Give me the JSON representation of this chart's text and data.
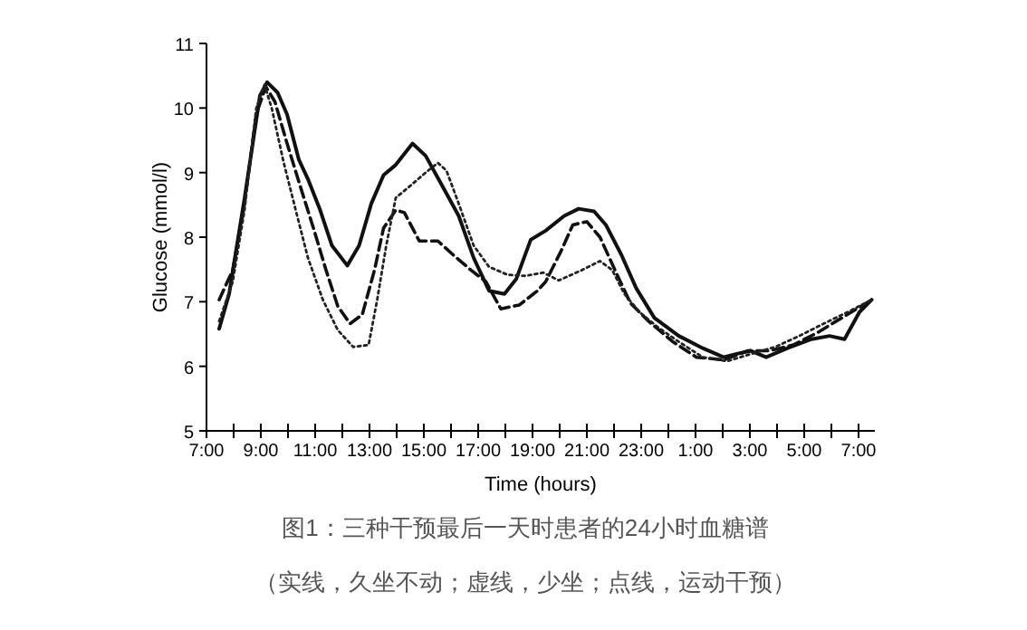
{
  "chart_data": {
    "type": "line",
    "xlabel": "Time (hours)",
    "ylabel": "Glucose (mmol/l)",
    "annotations": [
      "图1：三种干预最后一天时患者的24小时血糖谱",
      "（实线，久坐不动；虚线，少坐；点线，运动干预）"
    ],
    "xlim": [
      "2000-01-01T07:00",
      "2000-01-02T07:36"
    ],
    "ylim": [
      5,
      11
    ],
    "xticks": [
      {
        "value": "2000-01-01T07:00",
        "label": "7:00"
      },
      {
        "value": "2000-01-01T08:00",
        "label": null
      },
      {
        "value": "2000-01-01T09:00",
        "label": "9:00"
      },
      {
        "value": "2000-01-01T10:00",
        "label": null
      },
      {
        "value": "2000-01-01T11:00",
        "label": "11:00"
      },
      {
        "value": "2000-01-01T12:00",
        "label": null
      },
      {
        "value": "2000-01-01T13:00",
        "label": "13:00"
      },
      {
        "value": "2000-01-01T14:00",
        "label": null
      },
      {
        "value": "2000-01-01T15:00",
        "label": "15:00"
      },
      {
        "value": "2000-01-01T16:00",
        "label": null
      },
      {
        "value": "2000-01-01T17:00",
        "label": "17:00"
      },
      {
        "value": "2000-01-01T18:00",
        "label": null
      },
      {
        "value": "2000-01-01T19:00",
        "label": "19:00"
      },
      {
        "value": "2000-01-01T20:00",
        "label": null
      },
      {
        "value": "2000-01-01T21:00",
        "label": "21:00"
      },
      {
        "value": "2000-01-01T22:00",
        "label": null
      },
      {
        "value": "2000-01-01T23:00",
        "label": "23:00"
      },
      {
        "value": "2000-01-02T00:00",
        "label": null
      },
      {
        "value": "2000-01-02T01:00",
        "label": "1:00"
      },
      {
        "value": "2000-01-02T02:00",
        "label": null
      },
      {
        "value": "2000-01-02T03:00",
        "label": "3:00"
      },
      {
        "value": "2000-01-02T04:00",
        "label": null
      },
      {
        "value": "2000-01-02T05:00",
        "label": "5:00"
      },
      {
        "value": "2000-01-02T06:00",
        "label": null
      },
      {
        "value": "2000-01-02T07:00",
        "label": "7:00"
      }
    ],
    "yticks": [
      5,
      6,
      7,
      8,
      9,
      10,
      11
    ],
    "series": [
      {
        "color": "#111111",
        "line_style": "solid",
        "x": [
          "2000-01-01T07:28",
          "2000-01-01T07:50",
          "2000-01-01T08:24",
          "2000-01-01T08:58",
          "2000-01-01T09:14",
          "2000-01-01T09:37",
          "2000-01-01T09:58",
          "2000-01-01T10:24",
          "2000-01-01T10:44",
          "2000-01-01T11:11",
          "2000-01-01T11:37",
          "2000-01-01T12:11",
          "2000-01-01T12:37",
          "2000-01-01T13:04",
          "2000-01-01T13:31",
          "2000-01-01T13:58",
          "2000-01-01T14:35",
          "2000-01-01T15:04",
          "2000-01-01T15:37",
          "2000-01-01T16:17",
          "2000-01-01T16:50",
          "2000-01-01T17:24",
          "2000-01-01T17:58",
          "2000-01-01T18:24",
          "2000-01-01T18:56",
          "2000-01-01T19:29",
          "2000-01-01T20:10",
          "2000-01-01T20:42",
          "2000-01-01T21:16",
          "2000-01-01T21:42",
          "2000-01-01T22:16",
          "2000-01-01T22:49",
          "2000-01-01T23:29",
          "2000-01-02T00:23",
          "2000-01-02T01:16",
          "2000-01-02T02:02",
          "2000-01-02T02:29",
          "2000-01-02T03:02",
          "2000-01-02T03:36",
          "2000-01-02T04:23",
          "2000-01-02T05:16",
          "2000-01-02T05:56",
          "2000-01-02T06:29",
          "2000-01-02T07:02",
          "2000-01-02T07:29"
        ],
        "values": [
          6.58,
          7.12,
          8.6,
          10.19,
          10.4,
          10.24,
          9.9,
          9.2,
          8.9,
          8.42,
          7.87,
          7.56,
          7.87,
          8.52,
          8.96,
          9.12,
          9.45,
          9.26,
          8.84,
          8.33,
          7.68,
          7.17,
          7.12,
          7.35,
          7.96,
          8.1,
          8.33,
          8.44,
          8.4,
          8.19,
          7.73,
          7.21,
          6.75,
          6.47,
          6.28,
          6.14,
          6.19,
          6.24,
          6.14,
          6.28,
          6.42,
          6.47,
          6.42,
          6.84,
          7.03
        ]
      },
      {
        "color": "#111111",
        "line_style": "dashed",
        "x": [
          "2000-01-01T07:28",
          "2000-01-01T07:58",
          "2000-01-01T08:24",
          "2000-01-01T08:50",
          "2000-01-01T09:11",
          "2000-01-01T09:31",
          "2000-01-01T09:58",
          "2000-01-01T10:31",
          "2000-01-01T10:58",
          "2000-01-01T11:24",
          "2000-01-01T11:50",
          "2000-01-01T12:17",
          "2000-01-01T12:44",
          "2000-01-01T13:11",
          "2000-01-01T13:31",
          "2000-01-01T13:58",
          "2000-01-01T14:17",
          "2000-01-01T14:50",
          "2000-01-01T15:31",
          "2000-01-01T16:04",
          "2000-01-01T16:44",
          "2000-01-01T17:17",
          "2000-01-01T17:50",
          "2000-01-01T18:31",
          "2000-01-01T19:11",
          "2000-01-01T19:29",
          "2000-01-01T20:02",
          "2000-01-01T20:29",
          "2000-01-01T21:00",
          "2000-01-01T21:29",
          "2000-01-01T22:02",
          "2000-01-01T22:36",
          "2000-01-01T23:16",
          "2000-01-02T00:10",
          "2000-01-02T01:02",
          "2000-01-02T02:02",
          "2000-01-02T02:56",
          "2000-01-02T03:43",
          "2000-01-02T04:36",
          "2000-01-02T05:29",
          "2000-01-02T06:23",
          "2000-01-02T07:29"
        ],
        "values": [
          7.03,
          7.49,
          8.52,
          9.91,
          10.33,
          10.1,
          9.45,
          8.7,
          8.1,
          7.49,
          6.93,
          6.66,
          6.8,
          7.49,
          8.14,
          8.42,
          8.38,
          7.94,
          7.94,
          7.73,
          7.49,
          7.31,
          6.89,
          6.95,
          7.17,
          7.31,
          7.77,
          8.19,
          8.24,
          8.0,
          7.49,
          6.98,
          6.7,
          6.38,
          6.14,
          6.1,
          6.24,
          6.24,
          6.33,
          6.52,
          6.75,
          7.03
        ]
      },
      {
        "color": "#222222",
        "line_style": "dotted",
        "x": [
          "2000-01-01T07:28",
          "2000-01-01T07:58",
          "2000-01-01T08:24",
          "2000-01-01T08:50",
          "2000-01-01T09:08",
          "2000-01-01T09:24",
          "2000-01-01T09:50",
          "2000-01-01T10:17",
          "2000-01-01T10:44",
          "2000-01-01T11:17",
          "2000-01-01T11:50",
          "2000-01-01T12:24",
          "2000-01-01T12:58",
          "2000-01-01T13:17",
          "2000-01-01T13:37",
          "2000-01-01T13:58",
          "2000-01-01T14:31",
          "2000-01-01T15:04",
          "2000-01-01T15:31",
          "2000-01-01T15:50",
          "2000-01-01T16:17",
          "2000-01-01T16:50",
          "2000-01-01T17:24",
          "2000-01-01T18:04",
          "2000-01-01T18:44",
          "2000-01-01T19:24",
          "2000-01-01T19:58",
          "2000-01-01T20:49",
          "2000-01-01T21:29",
          "2000-01-01T21:56",
          "2000-01-01T22:23",
          "2000-01-01T22:56",
          "2000-01-01T23:36",
          "2000-01-02T00:23",
          "2000-01-02T01:16",
          "2000-01-02T02:10",
          "2000-01-02T03:02",
          "2000-01-02T03:56",
          "2000-01-02T04:49",
          "2000-01-02T05:43",
          "2000-01-02T06:36",
          "2000-01-02T07:29"
        ],
        "values": [
          6.7,
          7.31,
          8.42,
          10.0,
          10.36,
          10.0,
          9.17,
          8.42,
          7.68,
          7.03,
          6.56,
          6.3,
          6.33,
          7.03,
          7.87,
          8.61,
          8.8,
          9.0,
          9.15,
          9.03,
          8.52,
          7.87,
          7.54,
          7.42,
          7.4,
          7.45,
          7.33,
          7.49,
          7.63,
          7.49,
          7.12,
          6.84,
          6.61,
          6.38,
          6.14,
          6.08,
          6.19,
          6.3,
          6.47,
          6.66,
          6.84,
          7.03
        ]
      }
    ]
  }
}
